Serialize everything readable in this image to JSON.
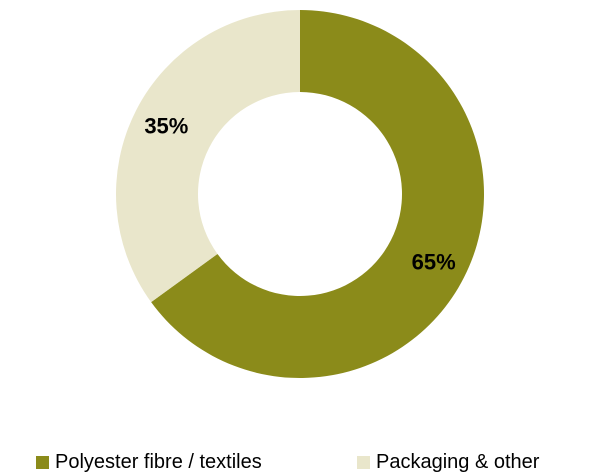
{
  "chart_data": {
    "type": "pie",
    "donut": true,
    "title": "",
    "slices": [
      {
        "label": "Polyester fibre / textiles",
        "value": 65,
        "display": "65%",
        "color": "#8B8B1A"
      },
      {
        "label": "Packaging & other",
        "value": 35,
        "display": "35%",
        "color": "#E9E6CB"
      }
    ],
    "start_angle_deg": 0,
    "direction": "clockwise",
    "legend_position": "bottom"
  }
}
